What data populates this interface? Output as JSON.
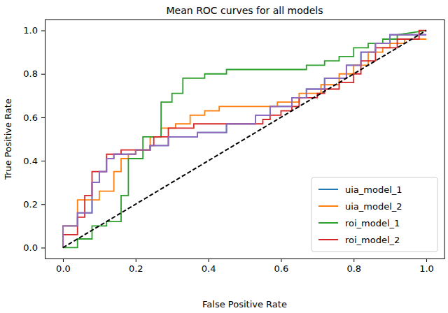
{
  "chart_data": {
    "type": "line",
    "title": "Mean ROC curves for all models",
    "x_label": "False Positive Rate",
    "y_label": "True Positive Rate",
    "xlim": [
      -0.05,
      1.05
    ],
    "ylim": [
      -0.05,
      1.05
    ],
    "xticks": [
      {
        "value": 0,
        "label": "0.0"
      },
      {
        "value": 0.2,
        "label": "0.2"
      },
      {
        "value": 0.4,
        "label": "0.4"
      },
      {
        "value": 0.6,
        "label": "0.6"
      },
      {
        "value": 0.8,
        "label": "0.8"
      },
      {
        "value": 1,
        "label": "1.0"
      }
    ],
    "yticks": [
      {
        "value": 0,
        "label": "0.0"
      },
      {
        "value": 0.2,
        "label": "0.2"
      },
      {
        "value": 0.4,
        "label": "0.4"
      },
      {
        "value": 0.6,
        "label": "0.6"
      },
      {
        "value": 0.8,
        "label": "0.8"
      },
      {
        "value": 1,
        "label": "1.0"
      }
    ],
    "legend": "lower right",
    "series": [
      {
        "name": "uia_model_1",
        "color": "#1f77b4",
        "x": [
          0,
          0,
          0.04,
          0.04,
          0.08,
          0.08,
          0.1,
          0.1,
          0.12,
          0.12,
          0.14,
          0.14,
          0.2,
          0.2,
          0.24,
          0.24,
          0.29,
          0.29,
          0.37,
          0.37,
          0.45,
          0.45,
          0.53,
          0.53,
          0.57,
          0.57,
          0.63,
          0.63,
          0.67,
          0.67,
          0.72,
          0.72,
          0.78,
          0.78,
          0.82,
          0.82,
          0.86,
          0.86,
          0.9,
          0.9,
          1
        ],
        "values": [
          0,
          0.1,
          0.1,
          0.16,
          0.16,
          0.3,
          0.3,
          0.35,
          0.35,
          0.41,
          0.41,
          0.43,
          0.43,
          0.45,
          0.45,
          0.47,
          0.47,
          0.51,
          0.51,
          0.53,
          0.53,
          0.57,
          0.57,
          0.61,
          0.61,
          0.65,
          0.65,
          0.69,
          0.69,
          0.73,
          0.73,
          0.78,
          0.78,
          0.84,
          0.84,
          0.9,
          0.9,
          0.94,
          0.94,
          0.98,
          0.98
        ]
      },
      {
        "name": "uia_model_2",
        "color": "#ff7f0e",
        "x": [
          0,
          0,
          0.04,
          0.04,
          0.1,
          0.1,
          0.14,
          0.14,
          0.16,
          0.16,
          0.18,
          0.18,
          0.2,
          0.2,
          0.24,
          0.24,
          0.27,
          0.27,
          0.31,
          0.31,
          0.35,
          0.35,
          0.39,
          0.39,
          0.43,
          0.43,
          0.59,
          0.59,
          0.65,
          0.65,
          0.71,
          0.71,
          0.76,
          0.76,
          0.8,
          0.8,
          0.84,
          0.84,
          0.88,
          0.88,
          0.9,
          0.9,
          0.94,
          0.94,
          1
        ],
        "values": [
          0,
          0.1,
          0.1,
          0.22,
          0.22,
          0.26,
          0.26,
          0.35,
          0.35,
          0.41,
          0.41,
          0.43,
          0.43,
          0.45,
          0.45,
          0.51,
          0.51,
          0.55,
          0.55,
          0.57,
          0.57,
          0.61,
          0.61,
          0.63,
          0.63,
          0.65,
          0.65,
          0.67,
          0.67,
          0.71,
          0.71,
          0.75,
          0.75,
          0.8,
          0.8,
          0.84,
          0.84,
          0.9,
          0.9,
          0.92,
          0.92,
          0.94,
          0.94,
          0.96,
          0.96
        ]
      },
      {
        "name": "roi_model_1",
        "color": "#2ca02c",
        "x": [
          0,
          0.04,
          0.04,
          0.08,
          0.08,
          0.12,
          0.12,
          0.16,
          0.16,
          0.18,
          0.18,
          0.22,
          0.22,
          0.27,
          0.27,
          0.3,
          0.3,
          0.33,
          0.33,
          0.39,
          0.39,
          0.45,
          0.45,
          0.67,
          0.67,
          0.72,
          0.72,
          0.76,
          0.76,
          0.8,
          0.8,
          0.84,
          0.84,
          0.88,
          0.88,
          0.92,
          0.92,
          1
        ],
        "values": [
          0,
          0,
          0.04,
          0.04,
          0.1,
          0.1,
          0.12,
          0.12,
          0.24,
          0.24,
          0.41,
          0.41,
          0.51,
          0.51,
          0.67,
          0.67,
          0.71,
          0.71,
          0.78,
          0.78,
          0.8,
          0.8,
          0.82,
          0.82,
          0.84,
          0.84,
          0.86,
          0.86,
          0.88,
          0.88,
          0.92,
          0.92,
          0.94,
          0.94,
          0.96,
          0.96,
          0.98,
          1
        ]
      },
      {
        "name": "roi_model_2",
        "color": "#d62728",
        "x": [
          0,
          0,
          0.04,
          0.04,
          0.06,
          0.06,
          0.08,
          0.08,
          0.12,
          0.12,
          0.16,
          0.16,
          0.24,
          0.24,
          0.25,
          0.25,
          0.29,
          0.29,
          0.36,
          0.36,
          0.55,
          0.55,
          0.57,
          0.57,
          0.6,
          0.6,
          0.63,
          0.63,
          0.65,
          0.65,
          0.7,
          0.7,
          0.72,
          0.72,
          0.76,
          0.76,
          0.8,
          0.8,
          0.82,
          0.82,
          0.86,
          0.86,
          0.92,
          0.92,
          0.98,
          0.98,
          1
        ],
        "values": [
          0,
          0.06,
          0.06,
          0.14,
          0.14,
          0.24,
          0.24,
          0.35,
          0.35,
          0.43,
          0.43,
          0.45,
          0.45,
          0.47,
          0.47,
          0.51,
          0.51,
          0.55,
          0.55,
          0.57,
          0.57,
          0.59,
          0.59,
          0.61,
          0.61,
          0.63,
          0.63,
          0.65,
          0.65,
          0.69,
          0.69,
          0.71,
          0.71,
          0.73,
          0.73,
          0.76,
          0.76,
          0.8,
          0.8,
          0.86,
          0.86,
          0.92,
          0.92,
          0.96,
          0.96,
          1,
          1
        ]
      },
      {
        "color": "#9467bd",
        "x": [
          0,
          0,
          0.04,
          0.04,
          0.08,
          0.08,
          0.1,
          0.1,
          0.12,
          0.12,
          0.14,
          0.14,
          0.2,
          0.2,
          0.24,
          0.24,
          0.29,
          0.29,
          0.37,
          0.37,
          0.45,
          0.45,
          0.53,
          0.53,
          0.57,
          0.57,
          0.63,
          0.63,
          0.67,
          0.67,
          0.72,
          0.72,
          0.78,
          0.78,
          0.82,
          0.82,
          0.86,
          0.86,
          0.9,
          0.9,
          1
        ],
        "values": [
          0,
          0.1,
          0.1,
          0.16,
          0.16,
          0.3,
          0.3,
          0.35,
          0.35,
          0.41,
          0.41,
          0.43,
          0.43,
          0.45,
          0.45,
          0.47,
          0.47,
          0.51,
          0.51,
          0.53,
          0.53,
          0.57,
          0.57,
          0.61,
          0.61,
          0.65,
          0.65,
          0.69,
          0.69,
          0.73,
          0.73,
          0.78,
          0.78,
          0.84,
          0.84,
          0.9,
          0.9,
          0.94,
          0.94,
          0.98,
          0.98
        ]
      },
      {
        "color": "#000000",
        "line_style": "dashed",
        "x": [
          0,
          1
        ],
        "values": [
          0,
          1
        ]
      }
    ]
  }
}
